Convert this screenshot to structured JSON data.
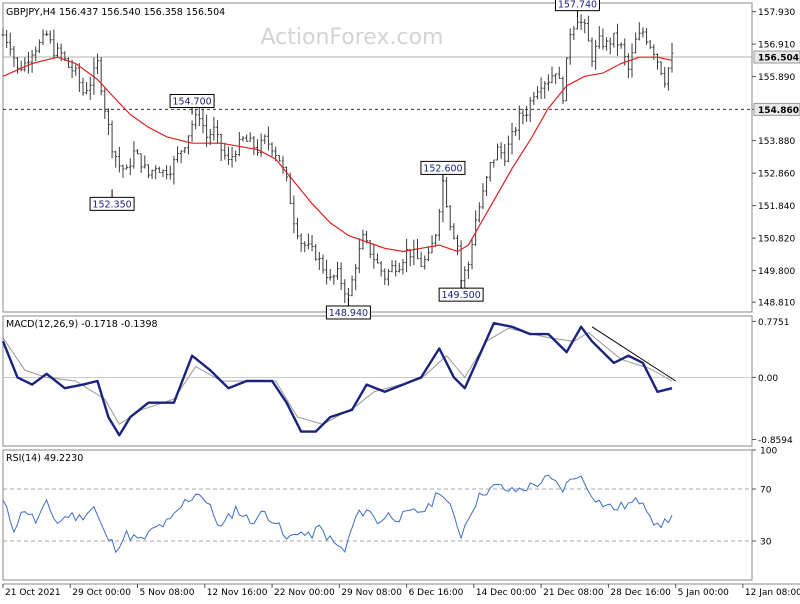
{
  "watermark": "ActionForex.com",
  "chart_data": [
    {
      "type": "candlestick",
      "title": "GBPJPY,H4",
      "ohlc_header": [
        "156.437",
        "156.540",
        "156.358",
        "156.504"
      ],
      "ylim": [
        148.5,
        158.2
      ],
      "y_ticks": [
        148.81,
        149.8,
        150.82,
        151.84,
        152.86,
        153.88,
        154.86,
        155.89,
        156.91,
        157.93
      ],
      "price_tag": 156.504,
      "price_line": 156.504,
      "support_line": 154.86,
      "support_tag": "154.860",
      "colors": {
        "candles": "#3a3a3a",
        "moving_average": "#dd2222",
        "support_line": "#333333",
        "price_tag": "#e8e8e8"
      },
      "close_path": [
        [
          0,
          157.2
        ],
        [
          4,
          156.9
        ],
        [
          8,
          156.1
        ],
        [
          12,
          156.3
        ],
        [
          16,
          156.7
        ],
        [
          20,
          156.9
        ],
        [
          24,
          157.2
        ],
        [
          28,
          156.7
        ],
        [
          32,
          156.6
        ],
        [
          36,
          156.2
        ],
        [
          40,
          156.0
        ],
        [
          44,
          155.4
        ],
        [
          48,
          155.7
        ],
        [
          52,
          156.3
        ],
        [
          56,
          154.9
        ],
        [
          60,
          153.7
        ],
        [
          64,
          153.1
        ],
        [
          68,
          152.9
        ],
        [
          72,
          153.5
        ],
        [
          76,
          153.2
        ],
        [
          80,
          152.8
        ],
        [
          84,
          153.1
        ],
        [
          88,
          152.9
        ],
        [
          92,
          153.0
        ],
        [
          96,
          153.4
        ],
        [
          100,
          153.8
        ],
        [
          104,
          154.4
        ],
        [
          108,
          154.7
        ],
        [
          112,
          154.0
        ],
        [
          116,
          154.2
        ],
        [
          120,
          153.6
        ],
        [
          124,
          153.2
        ],
        [
          128,
          153.6
        ],
        [
          132,
          153.9
        ],
        [
          136,
          153.8
        ],
        [
          140,
          153.6
        ],
        [
          144,
          153.9
        ],
        [
          148,
          153.7
        ],
        [
          152,
          153.3
        ],
        [
          156,
          152.6
        ],
        [
          160,
          151.4
        ],
        [
          164,
          150.7
        ],
        [
          168,
          150.5
        ],
        [
          172,
          150.3
        ],
        [
          176,
          149.9
        ],
        [
          180,
          149.5
        ],
        [
          184,
          149.7
        ],
        [
          188,
          149.2
        ],
        [
          190,
          148.94
        ],
        [
          194,
          150.0
        ],
        [
          198,
          150.8
        ],
        [
          202,
          150.4
        ],
        [
          206,
          150.0
        ],
        [
          210,
          149.6
        ],
        [
          214,
          149.9
        ],
        [
          218,
          150.0
        ],
        [
          222,
          150.4
        ],
        [
          226,
          150.3
        ],
        [
          230,
          150.0
        ],
        [
          234,
          150.2
        ],
        [
          238,
          151.0
        ],
        [
          242,
          152.6
        ],
        [
          246,
          151.3
        ],
        [
          250,
          150.6
        ],
        [
          252,
          149.5
        ],
        [
          256,
          150.0
        ],
        [
          260,
          151.4
        ],
        [
          264,
          152.2
        ],
        [
          268,
          153.1
        ],
        [
          272,
          153.6
        ],
        [
          276,
          153.4
        ],
        [
          280,
          154.0
        ],
        [
          284,
          154.6
        ],
        [
          288,
          154.8
        ],
        [
          292,
          155.4
        ],
        [
          296,
          155.7
        ],
        [
          300,
          155.8
        ],
        [
          304,
          156.1
        ],
        [
          308,
          155.3
        ],
        [
          312,
          157.3
        ],
        [
          316,
          157.74
        ],
        [
          320,
          157.4
        ],
        [
          324,
          156.5
        ],
        [
          328,
          157.0
        ],
        [
          332,
          156.9
        ],
        [
          336,
          157.1
        ],
        [
          340,
          156.8
        ],
        [
          344,
          156.1
        ],
        [
          348,
          157.0
        ],
        [
          352,
          157.3
        ],
        [
          356,
          156.9
        ],
        [
          358,
          156.7
        ],
        [
          360,
          156.4
        ],
        [
          364,
          155.8
        ],
        [
          368,
          156.504
        ]
      ],
      "moving_average": [
        [
          0,
          155.9
        ],
        [
          16,
          156.3
        ],
        [
          30,
          156.5
        ],
        [
          40,
          156.3
        ],
        [
          52,
          155.8
        ],
        [
          60,
          155.3
        ],
        [
          70,
          154.7
        ],
        [
          80,
          154.3
        ],
        [
          90,
          154.0
        ],
        [
          104,
          153.8
        ],
        [
          120,
          153.8
        ],
        [
          140,
          153.6
        ],
        [
          150,
          153.3
        ],
        [
          160,
          152.6
        ],
        [
          170,
          151.9
        ],
        [
          180,
          151.3
        ],
        [
          190,
          150.9
        ],
        [
          200,
          150.7
        ],
        [
          210,
          150.5
        ],
        [
          220,
          150.4
        ],
        [
          230,
          150.5
        ],
        [
          240,
          150.6
        ],
        [
          250,
          150.4
        ],
        [
          256,
          150.6
        ],
        [
          264,
          151.4
        ],
        [
          272,
          152.2
        ],
        [
          280,
          153.0
        ],
        [
          290,
          153.9
        ],
        [
          300,
          154.9
        ],
        [
          310,
          155.6
        ],
        [
          320,
          155.9
        ],
        [
          330,
          156.0
        ],
        [
          340,
          156.3
        ],
        [
          350,
          156.5
        ],
        [
          360,
          156.5
        ],
        [
          368,
          156.4
        ]
      ],
      "annotations": [
        {
          "label": "152.350",
          "x": 60,
          "y": 152.35,
          "anchor": "below"
        },
        {
          "label": "154.700",
          "x": 104,
          "y": 154.7,
          "anchor": "above"
        },
        {
          "label": "148.940",
          "x": 190,
          "y": 148.94,
          "anchor": "below"
        },
        {
          "label": "152.600",
          "x": 242,
          "y": 152.6,
          "anchor": "above"
        },
        {
          "label": "149.500",
          "x": 252,
          "y": 149.5,
          "anchor": "below"
        },
        {
          "label": "157.740",
          "x": 316,
          "y": 157.74,
          "anchor": "above"
        }
      ]
    },
    {
      "type": "line",
      "title": "MACD(12,26,9) -0.1718 -0.1398",
      "ylim": [
        -0.95,
        0.85
      ],
      "y_ticks": [
        -0.8594,
        0.0,
        0.7751
      ],
      "price_tag": "0.00",
      "colors": {
        "macd": "#1a237e",
        "signal": "#999999",
        "trendline": "#000000"
      },
      "series": [
        {
          "values": [
            [
              0,
              0.5
            ],
            [
              8,
              0.0
            ],
            [
              16,
              -0.1
            ],
            [
              24,
              0.05
            ],
            [
              34,
              -0.15
            ],
            [
              44,
              -0.1
            ],
            [
              52,
              -0.05
            ],
            [
              58,
              -0.55
            ],
            [
              64,
              -0.8
            ],
            [
              70,
              -0.55
            ],
            [
              80,
              -0.35
            ],
            [
              94,
              -0.35
            ],
            [
              104,
              0.3
            ],
            [
              114,
              0.1
            ],
            [
              124,
              -0.15
            ],
            [
              134,
              -0.05
            ],
            [
              148,
              -0.05
            ],
            [
              156,
              -0.35
            ],
            [
              164,
              -0.75
            ],
            [
              172,
              -0.75
            ],
            [
              180,
              -0.55
            ],
            [
              192,
              -0.45
            ],
            [
              200,
              -0.1
            ],
            [
              210,
              -0.2
            ],
            [
              220,
              -0.1
            ],
            [
              230,
              0.0
            ],
            [
              240,
              0.4
            ],
            [
              248,
              0.0
            ],
            [
              254,
              -0.15
            ],
            [
              262,
              0.3
            ],
            [
              270,
              0.75
            ],
            [
              280,
              0.7
            ],
            [
              290,
              0.6
            ],
            [
              300,
              0.6
            ],
            [
              310,
              0.35
            ],
            [
              318,
              0.7
            ],
            [
              324,
              0.5
            ],
            [
              336,
              0.2
            ],
            [
              344,
              0.3
            ],
            [
              352,
              0.2
            ],
            [
              360,
              -0.2
            ],
            [
              368,
              -0.15
            ]
          ]
        },
        {
          "values": [
            [
              0,
              0.55
            ],
            [
              12,
              0.1
            ],
            [
              24,
              0.0
            ],
            [
              40,
              -0.05
            ],
            [
              56,
              -0.3
            ],
            [
              64,
              -0.65
            ],
            [
              76,
              -0.45
            ],
            [
              94,
              -0.3
            ],
            [
              106,
              0.15
            ],
            [
              120,
              -0.05
            ],
            [
              150,
              -0.05
            ],
            [
              162,
              -0.55
            ],
            [
              176,
              -0.65
            ],
            [
              194,
              -0.4
            ],
            [
              204,
              -0.2
            ],
            [
              230,
              -0.02
            ],
            [
              244,
              0.3
            ],
            [
              254,
              0.0
            ],
            [
              266,
              0.5
            ],
            [
              278,
              0.68
            ],
            [
              300,
              0.55
            ],
            [
              314,
              0.5
            ],
            [
              322,
              0.62
            ],
            [
              340,
              0.25
            ],
            [
              356,
              0.12
            ],
            [
              368,
              -0.05
            ]
          ]
        }
      ],
      "trendline": [
        [
          324,
          0.7
        ],
        [
          370,
          -0.05
        ]
      ]
    },
    {
      "type": "line",
      "title": "RSI(14) 49.2230",
      "ylim": [
        0,
        100
      ],
      "y_ticks": [
        30,
        70,
        100
      ],
      "guide_lines": [
        30,
        70
      ],
      "colors": {
        "rsi": "#3d6fc7",
        "guides": "#aaaaaa"
      },
      "series": [
        {
          "values": [
            [
              0,
              60
            ],
            [
              6,
              40
            ],
            [
              12,
              55
            ],
            [
              18,
              45
            ],
            [
              24,
              58
            ],
            [
              30,
              44
            ],
            [
              36,
              50
            ],
            [
              42,
              48
            ],
            [
              50,
              56
            ],
            [
              56,
              35
            ],
            [
              62,
              25
            ],
            [
              68,
              35
            ],
            [
              76,
              30
            ],
            [
              84,
              40
            ],
            [
              92,
              45
            ],
            [
              100,
              60
            ],
            [
              108,
              68
            ],
            [
              114,
              55
            ],
            [
              120,
              40
            ],
            [
              128,
              55
            ],
            [
              136,
              45
            ],
            [
              144,
              52
            ],
            [
              150,
              45
            ],
            [
              156,
              30
            ],
            [
              162,
              38
            ],
            [
              168,
              33
            ],
            [
              174,
              40
            ],
            [
              182,
              28
            ],
            [
              188,
              22
            ],
            [
              194,
              48
            ],
            [
              200,
              55
            ],
            [
              206,
              45
            ],
            [
              212,
              50
            ],
            [
              218,
              48
            ],
            [
              226,
              52
            ],
            [
              234,
              55
            ],
            [
              240,
              70
            ],
            [
              246,
              55
            ],
            [
              252,
              35
            ],
            [
              258,
              55
            ],
            [
              264,
              68
            ],
            [
              272,
              72
            ],
            [
              280,
              68
            ],
            [
              290,
              72
            ],
            [
              300,
              78
            ],
            [
              308,
              70
            ],
            [
              316,
              82
            ],
            [
              322,
              70
            ],
            [
              328,
              60
            ],
            [
              336,
              55
            ],
            [
              344,
              58
            ],
            [
              352,
              62
            ],
            [
              360,
              40
            ],
            [
              364,
              45
            ],
            [
              368,
              49.2
            ]
          ]
        }
      ]
    }
  ],
  "x_ticks": [
    {
      "x": 0,
      "label": "21 Oct 2021"
    },
    {
      "x": 37,
      "label": "29 Oct 00:00"
    },
    {
      "x": 74,
      "label": "5 Nov 08:00"
    },
    {
      "x": 111,
      "label": "12 Nov 16:00"
    },
    {
      "x": 148,
      "label": "22 Nov 00:00"
    },
    {
      "x": 185,
      "label": "29 Nov 08:00"
    },
    {
      "x": 222,
      "label": "6 Dec 16:00"
    },
    {
      "x": 259,
      "label": "14 Dec 00:00"
    },
    {
      "x": 296,
      "label": "21 Dec 08:00"
    },
    {
      "x": 333,
      "label": "28 Dec 16:00"
    },
    {
      "x": 370,
      "label": "5 Jan 00:00"
    },
    {
      "x": 407,
      "label": "12 Jan 08:00"
    }
  ]
}
